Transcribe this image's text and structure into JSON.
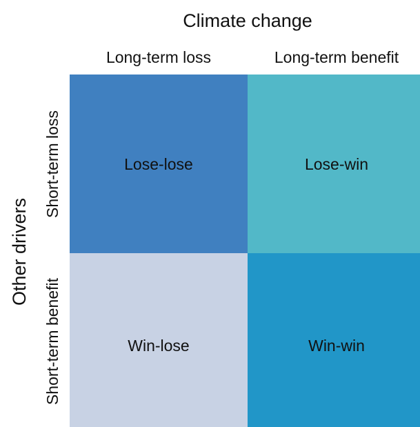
{
  "title": "Climate change",
  "row_axis": "Other drivers",
  "columns": [
    "Long-term loss",
    "Long-term benefit"
  ],
  "rows": [
    "Short-term loss",
    "Short-term benefit"
  ],
  "cells": [
    [
      "Lose-lose",
      "Lose-win"
    ],
    [
      "Win-lose",
      "Win-win"
    ]
  ]
}
